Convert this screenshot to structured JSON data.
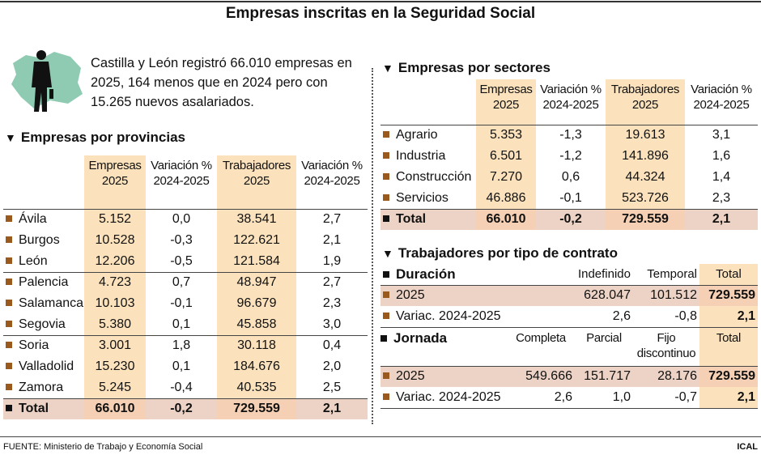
{
  "title": "Empresas inscritas en la Seguridad Social",
  "intro": "Castilla y León registró 66.010 empresas en 2025, 164 menos que en 2024 pero con 15.265 nuevos asalariados.",
  "colors": {
    "highlight": "#fbe2bc",
    "total_row": "#ecd3c5",
    "bullet": "#9a5a1e",
    "map": "#8fcbb3"
  },
  "provincias": {
    "title": "Empresas por provincias",
    "headers": [
      "Empresas 2025",
      "Variación % 2024-2025",
      "Trabajadores 2025",
      "Variación % 2024-2025"
    ],
    "rows": [
      [
        "Ávila",
        "5.152",
        "0,0",
        "38.541",
        "2,7"
      ],
      [
        "Burgos",
        "10.528",
        "-0,3",
        "122.621",
        "2,1"
      ],
      [
        "León",
        "12.206",
        "-0,5",
        "121.584",
        "1,9"
      ],
      [
        "Palencia",
        "4.723",
        "0,7",
        "48.947",
        "2,7"
      ],
      [
        "Salamanca",
        "10.103",
        "-0,1",
        "96.679",
        "2,3"
      ],
      [
        "Segovia",
        "5.380",
        "0,1",
        "45.858",
        "3,0"
      ],
      [
        "Soria",
        "3.001",
        "1,8",
        "30.118",
        "0,4"
      ],
      [
        "Valladolid",
        "15.230",
        "0,1",
        "184.676",
        "2,0"
      ],
      [
        "Zamora",
        "5.245",
        "-0,4",
        "40.535",
        "2,5"
      ]
    ],
    "total": [
      "Total",
      "66.010",
      "-0,2",
      "729.559",
      "2,1"
    ]
  },
  "sectores": {
    "title": "Empresas por sectores",
    "headers": [
      "Empresas 2025",
      "Variación % 2024-2025",
      "Trabajadores 2025",
      "Variación % 2024-2025"
    ],
    "rows": [
      [
        "Agrario",
        "5.353",
        "-1,3",
        "19.613",
        "3,1"
      ],
      [
        "Industria",
        "6.501",
        "-1,2",
        "141.896",
        "1,6"
      ],
      [
        "Construcción",
        "7.270",
        "0,6",
        "44.324",
        "1,4"
      ],
      [
        "Servicios",
        "46.886",
        "-0,1",
        "523.726",
        "2,3"
      ]
    ],
    "total": [
      "Total",
      "66.010",
      "-0,2",
      "729.559",
      "2,1"
    ]
  },
  "contrato": {
    "title": "Trabajadores por tipo de contrato",
    "duracion": {
      "label": "Duración",
      "headers": [
        "Indefinido",
        "Temporal",
        "Total"
      ],
      "rows": [
        [
          "2025",
          "628.047",
          "101.512",
          "729.559"
        ],
        [
          "Variac. 2024-2025",
          "2,6",
          "-0,8",
          "2,1"
        ]
      ]
    },
    "jornada": {
      "label": "Jornada",
      "headers": [
        "Completa",
        "Parcial",
        "Fijo discontinuo",
        "Total"
      ],
      "rows": [
        [
          "2025",
          "549.666",
          "151.717",
          "28.176",
          "729.559"
        ],
        [
          "Variac. 2024-2025",
          "2,6",
          "1,0",
          "-0,7",
          "2,1"
        ]
      ]
    }
  },
  "source": "FUENTE: Ministerio de Trabajo y Economía Social",
  "brand": "ICAL"
}
